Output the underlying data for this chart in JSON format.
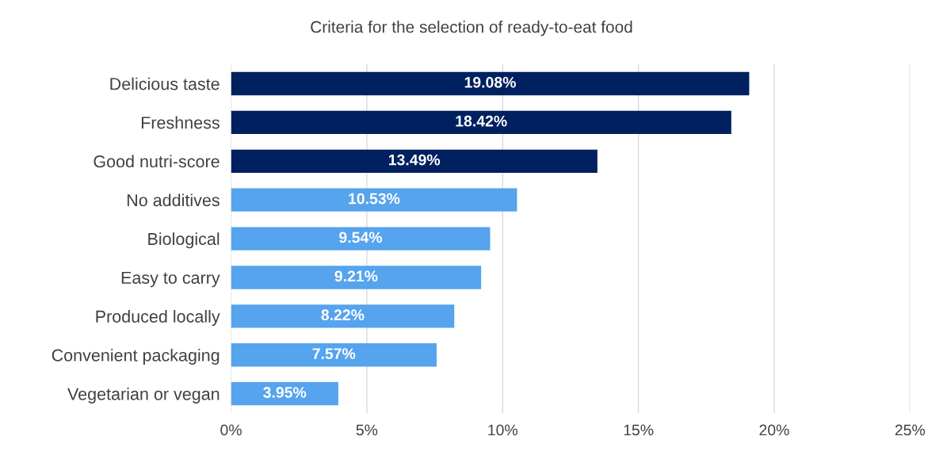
{
  "chart_data": {
    "type": "bar",
    "orientation": "horizontal",
    "title": "Criteria for the selection of ready-to-eat food",
    "categories": [
      "Delicious taste",
      "Freshness",
      "Good nutri-score",
      "No additives",
      "Biological",
      "Easy to carry",
      "Produced locally",
      "Convenient packaging",
      "Vegetarian or vegan"
    ],
    "values": [
      19.08,
      18.42,
      13.49,
      10.53,
      9.54,
      9.21,
      8.22,
      7.57,
      3.95
    ],
    "value_labels": [
      "19.08%",
      "18.42%",
      "13.49%",
      "10.53%",
      "9.54%",
      "9.21%",
      "8.22%",
      "7.57%",
      "3.95%"
    ],
    "colors": [
      "#002060",
      "#002060",
      "#002060",
      "#56a3ee",
      "#56a3ee",
      "#56a3ee",
      "#56a3ee",
      "#56a3ee",
      "#56a3ee"
    ],
    "xlim": [
      0,
      25
    ],
    "xticks": [
      {
        "value": 0,
        "label": "0%"
      },
      {
        "value": 5,
        "label": "5%"
      },
      {
        "value": 10,
        "label": "10%"
      },
      {
        "value": 15,
        "label": "15%"
      },
      {
        "value": 20,
        "label": "20%"
      },
      {
        "value": 25,
        "label": "25%"
      }
    ],
    "grid": "x",
    "legend": false
  }
}
